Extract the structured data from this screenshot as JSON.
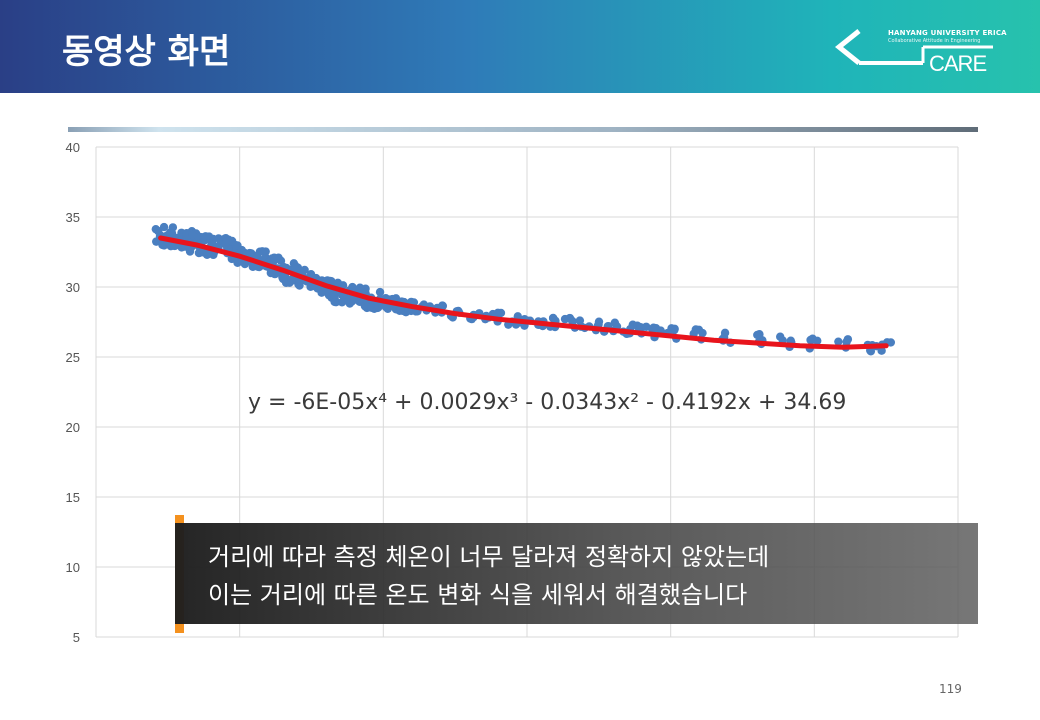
{
  "header": {
    "title": "동영상 화면"
  },
  "logo": {
    "university": "HANYANG UNIVERSITY ERICA",
    "tagline": "Collaborative Attitude in Engineering",
    "brand": "CARE"
  },
  "chart_data": {
    "type": "scatter",
    "ylim": [
      5,
      40
    ],
    "yticks": [
      "40",
      "35",
      "30",
      "25",
      "20",
      "15",
      "10",
      "5"
    ],
    "xlim": [
      0,
      6
    ],
    "grid": true,
    "legend": "none",
    "colors": {
      "points": "#4a7fc0",
      "trend": "#e8141c"
    },
    "series": [
      {
        "kind": "points",
        "x": [
          0.45,
          0.5,
          0.55,
          0.6,
          0.65,
          0.7,
          0.75,
          0.8,
          0.85,
          0.9,
          0.95,
          1.0,
          1.05,
          1.1,
          1.15,
          1.2,
          1.25,
          1.3,
          1.35,
          1.4,
          1.45,
          1.5,
          1.55,
          1.6,
          1.65,
          1.7,
          1.75,
          1.8,
          1.85,
          1.9,
          1.95,
          2.0,
          2.05,
          2.1,
          2.15,
          2.2,
          2.3,
          2.4,
          2.5,
          2.6,
          2.7,
          2.8,
          2.9,
          3.0,
          3.1,
          3.2,
          3.3,
          3.4,
          3.5,
          3.6,
          3.7,
          3.8,
          3.9,
          4.0,
          4.2,
          4.4,
          4.6,
          4.8,
          5.0,
          5.2,
          5.4,
          5.5
        ],
        "y": [
          33.6,
          33.6,
          33.3,
          33.4,
          33.2,
          33.3,
          33.1,
          33.0,
          32.9,
          32.8,
          32.6,
          32.4,
          32.3,
          32.1,
          31.9,
          31.7,
          31.5,
          31.2,
          31.0,
          30.8,
          30.6,
          30.4,
          30.2,
          30.0,
          29.8,
          29.6,
          29.5,
          29.4,
          29.2,
          29.1,
          29.0,
          28.9,
          28.8,
          28.7,
          28.6,
          28.6,
          28.4,
          28.3,
          28.1,
          28.0,
          27.9,
          27.8,
          27.7,
          27.6,
          27.5,
          27.4,
          27.4,
          27.3,
          27.2,
          27.1,
          27.0,
          26.9,
          26.8,
          26.7,
          26.6,
          26.4,
          26.3,
          26.1,
          26.0,
          25.9,
          25.8,
          25.8
        ]
      },
      {
        "kind": "trendline",
        "x": [
          0.45,
          0.7,
          1.0,
          1.3,
          1.6,
          1.9,
          2.2,
          2.5,
          2.8,
          3.1,
          3.4,
          3.7,
          4.0,
          4.3,
          4.6,
          4.9,
          5.2,
          5.5
        ],
        "y": [
          33.5,
          33.0,
          32.2,
          31.2,
          30.1,
          29.2,
          28.6,
          28.1,
          27.7,
          27.4,
          27.1,
          26.8,
          26.5,
          26.2,
          26.0,
          25.8,
          25.7,
          25.8
        ]
      }
    ],
    "annotation": "y = -6E-05x⁴ + 0.0029x³ - 0.0343x² - 0.4192x + 34.69"
  },
  "caption": {
    "line1": "거리에 따라 측정 체온이 너무 달라져 정확하지 않았는데",
    "line2": "이는 거리에 따른 온도 변화 식을 세워서 해결했습니다"
  },
  "page_number": "119"
}
